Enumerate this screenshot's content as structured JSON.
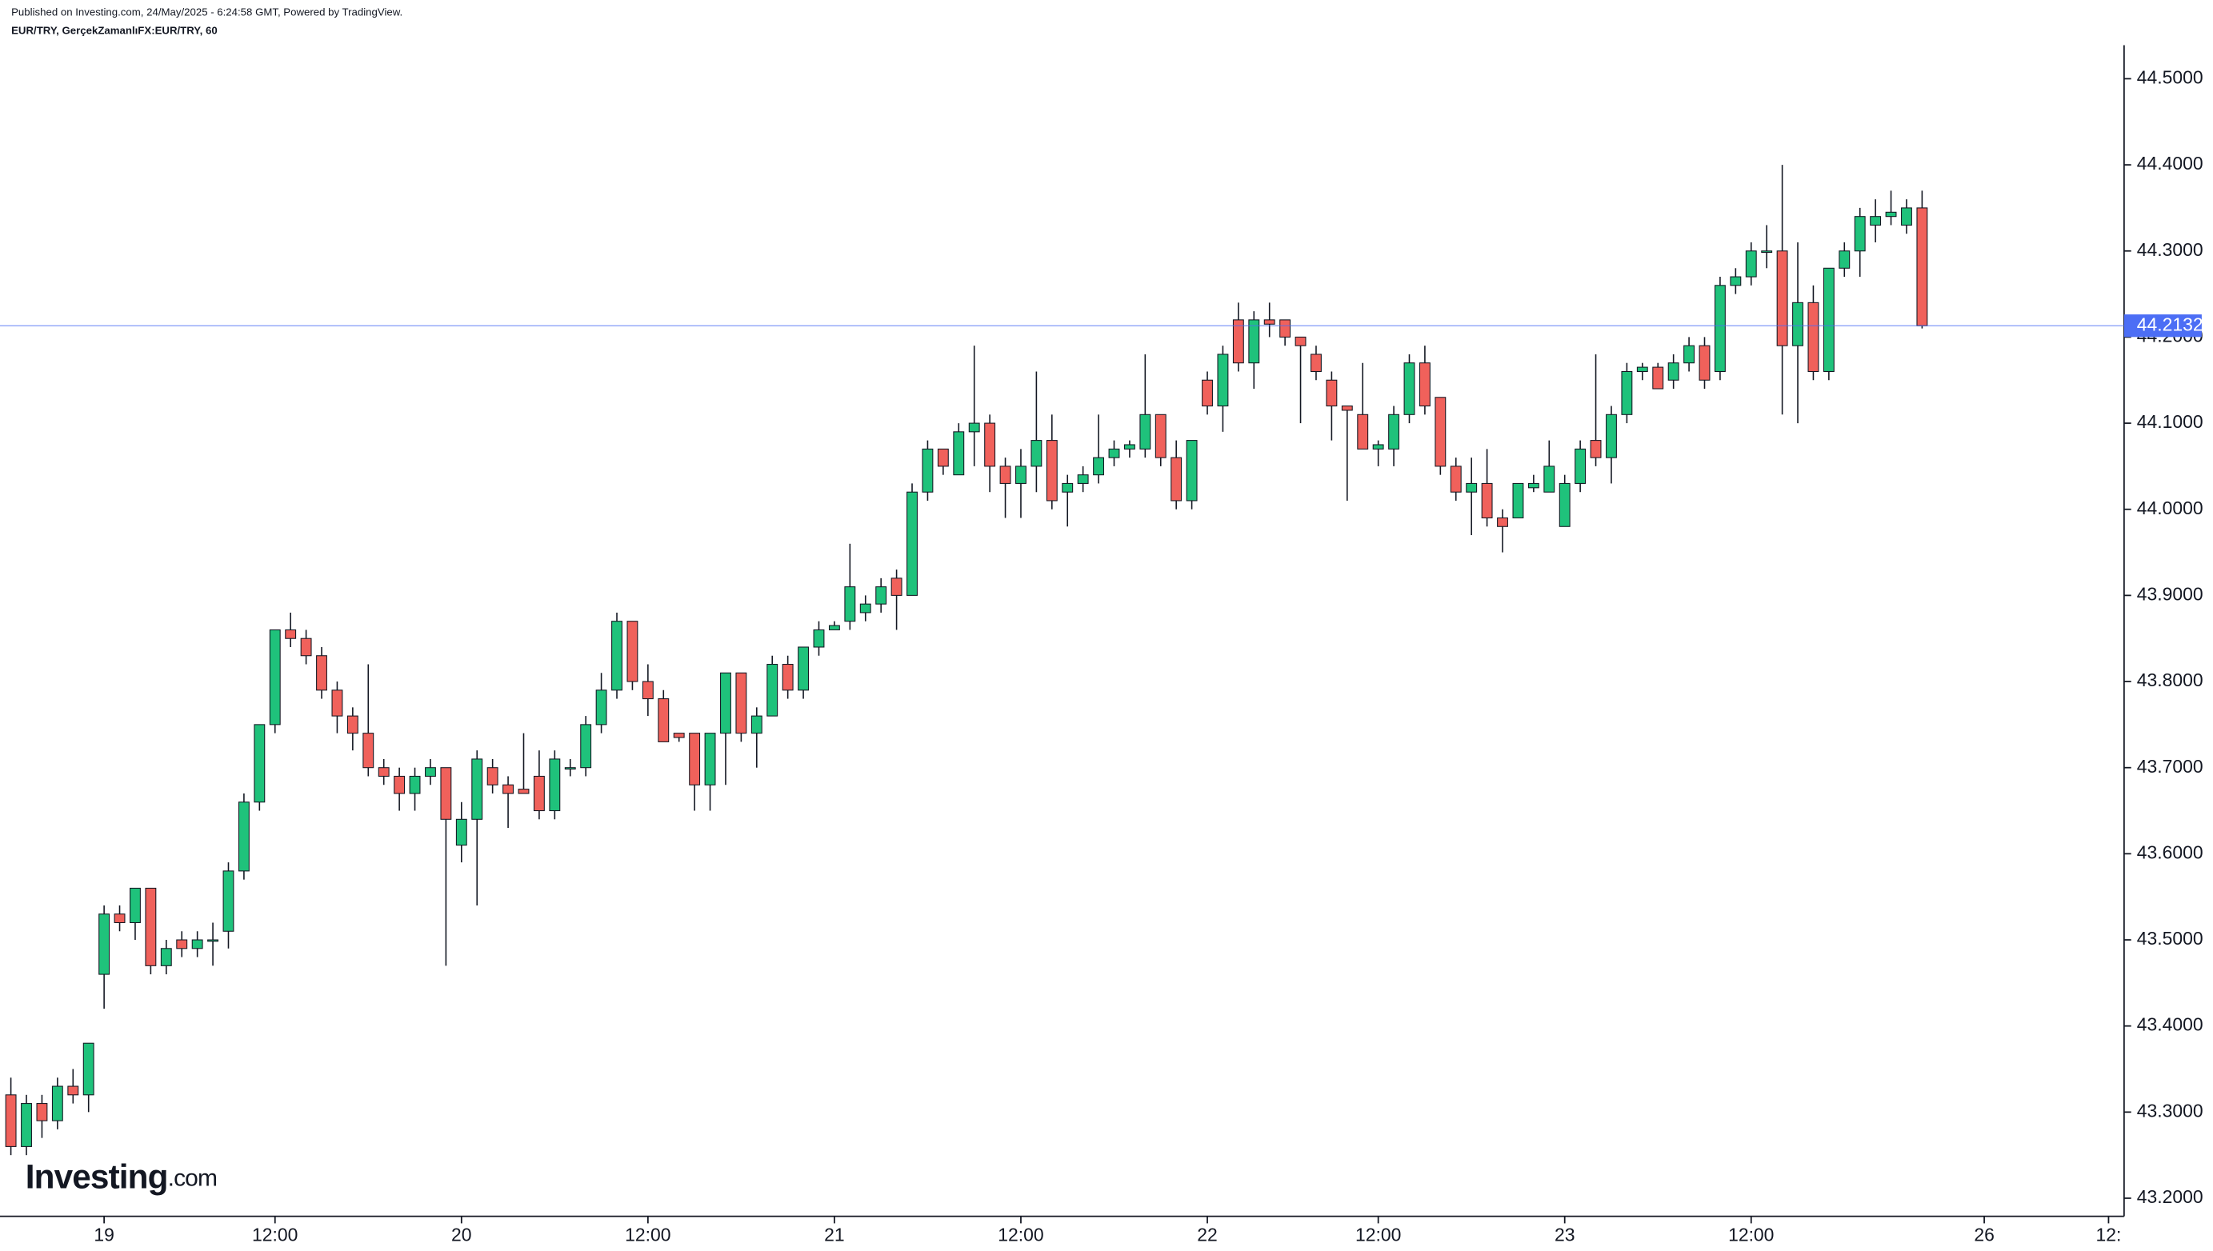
{
  "header": {
    "published": "Published on Investing.com, 24/May/2025 - 6:24:58 GMT, Powered by TradingView.",
    "symbol": "EUR/TRY, GerçekZamanlıFX:EUR/TRY, 60"
  },
  "logo": {
    "brand": "Investing",
    "suffix": ".com"
  },
  "chart_data": {
    "type": "candlestick",
    "up_color": "#1fc27b",
    "down_color": "#f0615b",
    "wick_color": "#131722",
    "last_price_color": "#4c6ef5",
    "open": [
      43.32,
      43.26,
      43.31,
      43.29,
      43.33,
      43.32,
      43.46,
      43.53,
      43.52,
      43.56,
      43.47,
      43.5,
      43.49,
      43.5,
      43.51,
      43.58,
      43.66,
      43.75,
      43.86,
      43.85,
      43.83,
      43.79,
      43.76,
      43.74,
      43.7,
      43.69,
      43.67,
      43.69,
      43.7,
      43.61,
      43.64,
      43.7,
      43.68,
      43.675,
      43.69,
      43.65,
      43.7,
      43.7,
      43.75,
      43.79,
      43.87,
      43.8,
      43.78,
      43.74,
      43.74,
      43.68,
      43.74,
      43.81,
      43.74,
      43.76,
      43.82,
      43.79,
      43.84,
      43.86,
      43.87,
      43.88,
      43.89,
      43.92,
      43.9,
      44.02,
      44.07,
      44.04,
      44.09,
      44.1,
      44.05,
      44.03,
      44.05,
      44.08,
      44.02,
      44.03,
      44.04,
      44.06,
      44.07,
      44.07,
      44.11,
      44.06,
      44.01,
      44.15,
      44.12,
      44.22,
      44.17,
      44.22,
      44.22,
      44.2,
      44.18,
      44.15,
      44.12,
      44.11,
      44.07,
      44.07,
      44.11,
      44.17,
      44.13,
      44.05,
      44.02,
      44.03,
      43.99,
      43.99,
      44.025,
      44.02,
      43.98,
      44.03,
      44.08,
      44.06,
      44.11,
      44.16,
      44.165,
      44.15,
      44.17,
      44.19,
      44.16,
      44.26,
      44.27,
      44.3,
      44.3,
      44.19,
      44.24,
      44.16,
      44.28,
      44.3,
      44.33,
      44.34,
      44.33,
      44.35
    ],
    "high": [
      43.34,
      43.32,
      43.32,
      43.34,
      43.35,
      43.38,
      43.54,
      43.54,
      43.56,
      43.56,
      43.5,
      43.51,
      43.51,
      43.52,
      43.59,
      43.67,
      43.75,
      43.86,
      43.88,
      43.86,
      43.84,
      43.8,
      43.77,
      43.82,
      43.71,
      43.7,
      43.7,
      43.71,
      43.7,
      43.66,
      43.72,
      43.71,
      43.69,
      43.74,
      43.72,
      43.72,
      43.71,
      43.76,
      43.81,
      43.88,
      43.87,
      43.82,
      43.79,
      43.74,
      43.74,
      43.74,
      43.81,
      43.81,
      43.77,
      43.83,
      43.83,
      43.84,
      43.87,
      43.87,
      43.96,
      43.9,
      43.92,
      43.93,
      44.03,
      44.08,
      44.07,
      44.1,
      44.19,
      44.11,
      44.06,
      44.07,
      44.16,
      44.11,
      44.04,
      44.05,
      44.11,
      44.08,
      44.08,
      44.18,
      44.11,
      44.08,
      44.08,
      44.16,
      44.19,
      44.24,
      44.23,
      44.24,
      44.22,
      44.2,
      44.19,
      44.16,
      44.12,
      44.17,
      44.08,
      44.12,
      44.18,
      44.19,
      44.13,
      44.06,
      44.06,
      44.07,
      44.0,
      44.03,
      44.04,
      44.08,
      44.04,
      44.08,
      44.18,
      44.12,
      44.17,
      44.17,
      44.17,
      44.18,
      44.2,
      44.2,
      44.27,
      44.28,
      44.31,
      44.33,
      44.4,
      44.31,
      44.26,
      44.28,
      44.31,
      44.35,
      44.36,
      44.37,
      44.36,
      44.37
    ],
    "low": [
      43.25,
      43.25,
      43.27,
      43.28,
      43.31,
      43.3,
      43.42,
      43.51,
      43.5,
      43.46,
      43.46,
      43.48,
      43.48,
      43.47,
      43.49,
      43.57,
      43.65,
      43.74,
      43.84,
      43.82,
      43.78,
      43.74,
      43.72,
      43.69,
      43.68,
      43.65,
      43.65,
      43.68,
      43.47,
      43.59,
      43.54,
      43.67,
      43.63,
      43.67,
      43.64,
      43.64,
      43.69,
      43.69,
      43.74,
      43.78,
      43.79,
      43.76,
      43.73,
      43.73,
      43.65,
      43.65,
      43.68,
      43.73,
      43.7,
      43.76,
      43.78,
      43.78,
      43.83,
      43.86,
      43.86,
      43.87,
      43.88,
      43.86,
      43.9,
      44.01,
      44.04,
      44.04,
      44.05,
      44.02,
      43.99,
      43.99,
      44.02,
      44.0,
      43.98,
      44.02,
      44.03,
      44.05,
      44.06,
      44.06,
      44.05,
      44.0,
      44.0,
      44.11,
      44.09,
      44.16,
      44.14,
      44.2,
      44.19,
      44.1,
      44.15,
      44.08,
      44.01,
      44.07,
      44.05,
      44.05,
      44.1,
      44.11,
      44.04,
      44.01,
      43.97,
      43.98,
      43.95,
      43.99,
      44.02,
      44.02,
      43.98,
      44.02,
      44.05,
      44.03,
      44.1,
      44.15,
      44.14,
      44.14,
      44.16,
      44.14,
      44.15,
      44.25,
      44.26,
      44.28,
      44.11,
      44.1,
      44.15,
      44.15,
      44.27,
      44.27,
      44.31,
      44.33,
      44.32,
      44.21
    ],
    "close": [
      43.26,
      43.31,
      43.29,
      43.33,
      43.32,
      43.38,
      43.53,
      43.52,
      43.56,
      43.47,
      43.49,
      43.49,
      43.5,
      43.5,
      43.58,
      43.66,
      43.75,
      43.86,
      43.85,
      43.83,
      43.79,
      43.76,
      43.74,
      43.7,
      43.69,
      43.67,
      43.69,
      43.7,
      43.64,
      43.64,
      43.71,
      43.68,
      43.67,
      43.67,
      43.65,
      43.71,
      43.7,
      43.75,
      43.79,
      43.87,
      43.8,
      43.78,
      43.73,
      43.735,
      43.68,
      43.74,
      43.81,
      43.74,
      43.76,
      43.82,
      43.79,
      43.84,
      43.86,
      43.865,
      43.91,
      43.89,
      43.91,
      43.9,
      44.02,
      44.07,
      44.05,
      44.09,
      44.1,
      44.05,
      44.03,
      44.05,
      44.08,
      44.01,
      44.03,
      44.04,
      44.06,
      44.07,
      44.075,
      44.11,
      44.06,
      44.01,
      44.08,
      44.12,
      44.18,
      44.17,
      44.22,
      44.215,
      44.2,
      44.19,
      44.16,
      44.12,
      44.115,
      44.07,
      44.075,
      44.11,
      44.17,
      44.12,
      44.05,
      44.02,
      44.03,
      43.99,
      43.98,
      44.03,
      44.03,
      44.05,
      44.03,
      44.07,
      44.06,
      44.11,
      44.16,
      44.165,
      44.14,
      44.17,
      44.19,
      44.15,
      44.26,
      44.27,
      44.3,
      44.3,
      44.19,
      44.24,
      44.16,
      44.28,
      44.3,
      44.34,
      44.34,
      44.345,
      44.35,
      44.2132
    ],
    "last_price": 44.2132,
    "xlim": [
      -0.7,
      136
    ],
    "xticks": [
      {
        "value": 6,
        "label": "19"
      },
      {
        "value": 17,
        "label": "12:00"
      },
      {
        "value": 29,
        "label": "20"
      },
      {
        "value": 41,
        "label": "12:00"
      },
      {
        "value": 53,
        "label": "21"
      },
      {
        "value": 65,
        "label": "12:00"
      },
      {
        "value": 77,
        "label": "22"
      },
      {
        "value": 88,
        "label": "12:00"
      },
      {
        "value": 100,
        "label": "23"
      },
      {
        "value": 112,
        "label": "12:00"
      },
      {
        "value": 127,
        "label": "26"
      },
      {
        "value": 135,
        "label": "12:"
      }
    ],
    "ylim": [
      43.179,
      44.539
    ],
    "yticks": [
      {
        "value": 43.2,
        "label": "43.2000"
      },
      {
        "value": 43.3,
        "label": "43.3000"
      },
      {
        "value": 43.4,
        "label": "43.4000"
      },
      {
        "value": 43.5,
        "label": "43.5000"
      },
      {
        "value": 43.6,
        "label": "43.6000"
      },
      {
        "value": 43.7,
        "label": "43.7000"
      },
      {
        "value": 43.8,
        "label": "43.8000"
      },
      {
        "value": 43.9,
        "label": "43.9000"
      },
      {
        "value": 44.0,
        "label": "44.0000"
      },
      {
        "value": 44.1,
        "label": "44.1000"
      },
      {
        "value": 44.2,
        "label": "44.2000"
      },
      {
        "value": 44.3,
        "label": "44.3000"
      },
      {
        "value": 44.4,
        "label": "44.4000"
      },
      {
        "value": 44.5,
        "label": "44.5000"
      }
    ]
  }
}
